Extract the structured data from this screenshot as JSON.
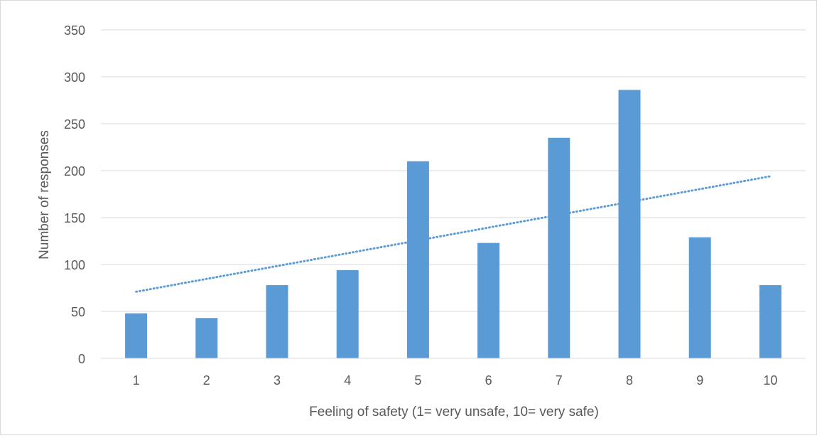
{
  "chart_data": {
    "type": "bar",
    "title": "",
    "xlabel": "Feeling of safety (1= very unsafe, 10= very safe)",
    "ylabel": "Number of responses",
    "categories": [
      "1",
      "2",
      "3",
      "4",
      "5",
      "6",
      "7",
      "8",
      "9",
      "10"
    ],
    "values": [
      48,
      43,
      78,
      94,
      210,
      123,
      235,
      286,
      129,
      78
    ],
    "ylim": [
      0,
      350
    ],
    "yticks": [
      "0",
      "50",
      "100",
      "150",
      "200",
      "250",
      "300",
      "350"
    ],
    "trendline": {
      "type": "linear",
      "style": "dotted",
      "start": 71,
      "end": 194
    },
    "grid": true,
    "legend": "none",
    "colors": {
      "bar": "#5b9bd5",
      "trendline": "#5b9bd5",
      "grid": "#d9d9d9"
    }
  }
}
